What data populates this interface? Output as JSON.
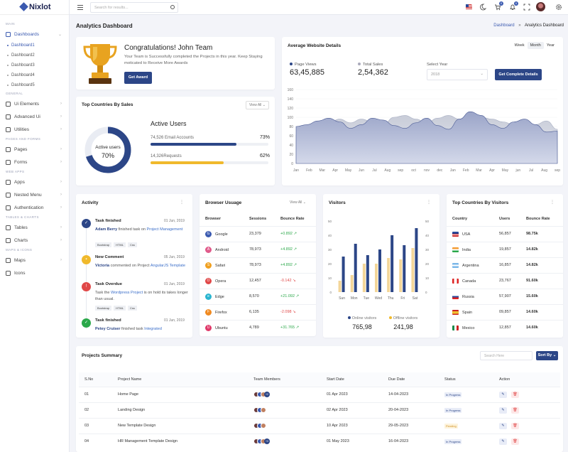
{
  "app": {
    "logo": "Nixlot"
  },
  "topbar": {
    "search_placeholder": "Search for results...",
    "notif_badge_1": "0",
    "notif_badge_2": "0"
  },
  "sidebar": {
    "sections": {
      "main": "MAIN",
      "general": "GENERAL",
      "pages": "PAGES AND FORMS",
      "web": "WEB APPS",
      "tables": "TABLES & CHARTS",
      "maps": "MAPS & ICONS"
    },
    "dashboards": "Dashboards",
    "subitems": [
      "Dashboard1",
      "Dashboard2",
      "Dashboard3",
      "Dashboard4",
      "Dashboard5"
    ],
    "general": [
      "Ui Elements",
      "Advanced Ui",
      "Utilities"
    ],
    "pages": [
      "Pages",
      "Forms"
    ],
    "web": [
      "Apps",
      "Nested Menu",
      "Authentication"
    ],
    "tables": [
      "Tables",
      "Charts"
    ],
    "maps": [
      "Maps",
      "Icons"
    ]
  },
  "page": {
    "title": "Analytics Dashboard",
    "crumb1": "Dashboard",
    "sep": "»",
    "crumb2": "Analytics Dashboard"
  },
  "congrats": {
    "title": "Congratulations! John Team",
    "text": "Your Team is Successfully completed the Projects in this year. Keep Staying moticated to Receive More Awards",
    "button": "Get Award"
  },
  "avg": {
    "title": "Average Website Details",
    "tabs": [
      "Week",
      "Month",
      "Year"
    ],
    "pv_label": "Page Views",
    "pv_value": "63,45,885",
    "ts_label": "Total Sales",
    "ts_value": "2,54,362",
    "year_label": "Select Year",
    "year_value": "2018",
    "button": "Get Complete Details"
  },
  "area_chart": {
    "months": [
      "Jan",
      "Feb",
      "Mar",
      "Apr",
      "May",
      "Jun",
      "Jul",
      "Aug",
      "sep",
      "oct",
      "nov",
      "dec",
      "Jan",
      "Feb",
      "Mar",
      "Apr",
      "May",
      "jun",
      "Jul",
      "Aug",
      "sep"
    ],
    "yticks": [
      "160",
      "140",
      "120",
      "100",
      "80",
      "60",
      "40",
      "20",
      "0"
    ]
  },
  "sales": {
    "title": "Top Countries By Sales",
    "viewall": "View All",
    "donut_label": "Active users",
    "donut_value": "70%",
    "donut_pct": 70,
    "active_title": "Active Users",
    "bar1_num": "74,526",
    "bar1_text": "Email Accounts",
    "bar1_pct": "73%",
    "bar1_val": 73,
    "bar2_num": "14,326",
    "bar2_text": "Requests",
    "bar2_pct": "62%",
    "bar2_val": 62
  },
  "activity": {
    "title": "Activity",
    "items": [
      {
        "title": "Task finished",
        "date": "01 Jun, 2019",
        "name": "Adam Berry",
        "text": "finished task on",
        "link": "Project Management",
        "tags": [
          "Bootstrap",
          "HTML",
          "Css"
        ],
        "color": "#2c4687",
        "icon": "✓"
      },
      {
        "title": "New Comment",
        "date": "05 Jun, 2019",
        "name": "Victoria",
        "text": "commented on Project",
        "link": "AngularJS Template",
        "tags": [],
        "color": "#f0b92c",
        "icon": "▪"
      },
      {
        "title": "Task Overdue",
        "date": "01 Jun, 2019",
        "name": "",
        "text": "Task the",
        "link": "Wordpress Project",
        "text2": "is on hold its takes longer than usual.",
        "tags": [
          "Bootstrap",
          "HTML",
          "Css"
        ],
        "color": "#e04848",
        "icon": "!"
      },
      {
        "title": "Task finished",
        "date": "01 Jun, 2019",
        "name": "Petey Cruiser",
        "text": "finished task",
        "link": "Integrated",
        "tags": [],
        "color": "#2ba84a",
        "icon": "✓"
      }
    ]
  },
  "browser": {
    "title": "Browser Usuage",
    "viewall": "View All",
    "headers": [
      "Browser",
      "Sessions",
      "Bounce Rate"
    ],
    "rows": [
      {
        "name": "Google",
        "sessions": "23,379",
        "rate": "+0.892",
        "dir": "up",
        "color": "#3b5ab0",
        "icon": "G"
      },
      {
        "name": "Android",
        "sessions": "78,973",
        "rate": "+4.892",
        "dir": "up",
        "color": "#e05a8a",
        "icon": "A"
      },
      {
        "name": "Safari",
        "sessions": "78,973",
        "rate": "+4.892",
        "dir": "up",
        "color": "#f0a020",
        "icon": "S"
      },
      {
        "name": "Opera",
        "sessions": "12,457",
        "rate": "-0.142",
        "dir": "down",
        "color": "#e04848",
        "icon": "O"
      },
      {
        "name": "Edge",
        "sessions": "8,570",
        "rate": "+21.092",
        "dir": "up",
        "color": "#2ab5d0",
        "icon": "e"
      },
      {
        "name": "Firefox",
        "sessions": "6,135",
        "rate": "-2.098",
        "dir": "down",
        "color": "#f08a20",
        "icon": "F"
      },
      {
        "name": "Ubuntu",
        "sessions": "4,789",
        "rate": "+31.765",
        "dir": "up",
        "color": "#e03a6a",
        "icon": "U"
      }
    ]
  },
  "visitors": {
    "title": "Visitors",
    "online_label": "Online visitors",
    "online_value": "765,98",
    "offline_label": "Offline visitors",
    "offline_value": "241,98"
  },
  "chart_data": {
    "type": "bar",
    "categories": [
      "Sun",
      "Mon",
      "Tue",
      "Wed",
      "Thu",
      "Fri",
      "Sat"
    ],
    "series": [
      {
        "name": "Online visitors",
        "values": [
          25,
          34,
          26,
          30,
          40,
          33,
          45
        ]
      },
      {
        "name": "Offline visitors",
        "values": [
          8,
          12,
          20,
          20,
          24,
          23,
          31
        ]
      }
    ],
    "ylim": [
      0,
      50
    ],
    "yticks": [
      "50",
      "40",
      "30",
      "20",
      "10",
      "0"
    ],
    "colors": [
      "#2c4687",
      "#f3d699"
    ]
  },
  "countries": {
    "title": "Top Countries By Visitors",
    "headers": [
      "Country",
      "Users",
      "Bounce Rate"
    ],
    "rows": [
      {
        "name": "USA",
        "users": "56,857",
        "rate": "98.75k"
      },
      {
        "name": "India",
        "users": "19,857",
        "rate": "14.82k"
      },
      {
        "name": "Argentina",
        "users": "16,857",
        "rate": "14.82k"
      },
      {
        "name": "Canada",
        "users": "23,767",
        "rate": "91.60k"
      },
      {
        "name": "Russia",
        "users": "57,907",
        "rate": "15.60k"
      },
      {
        "name": "Spain",
        "users": "09,857",
        "rate": "14.60k"
      },
      {
        "name": "Mexico",
        "users": "12,857",
        "rate": "14.60k"
      }
    ]
  },
  "projects": {
    "title": "Projects Summary",
    "search_placeholder": "Search Here",
    "sort": "Sort By",
    "headers": [
      "S.No",
      "Project Name",
      "Team Members",
      "Start Date",
      "Due Date",
      "Status",
      "Action"
    ],
    "rows": [
      {
        "no": "01",
        "name": "Home Page",
        "start": "01 Apr 2023",
        "due": "14-04-2023",
        "status": "In Progress",
        "badge": "+2"
      },
      {
        "no": "02",
        "name": "Landing Design",
        "start": "02 Apr 2023",
        "due": "20-04-2023",
        "status": "In Progress",
        "badge": ""
      },
      {
        "no": "03",
        "name": "New Template Design",
        "start": "10 Apr 2023",
        "due": "29-05-2023",
        "status": "Pending",
        "badge": ""
      },
      {
        "no": "04",
        "name": "HR Management Template Design",
        "start": "01 May 2023",
        "due": "16-04-2023",
        "status": "In Progress",
        "badge": "+3"
      }
    ]
  }
}
